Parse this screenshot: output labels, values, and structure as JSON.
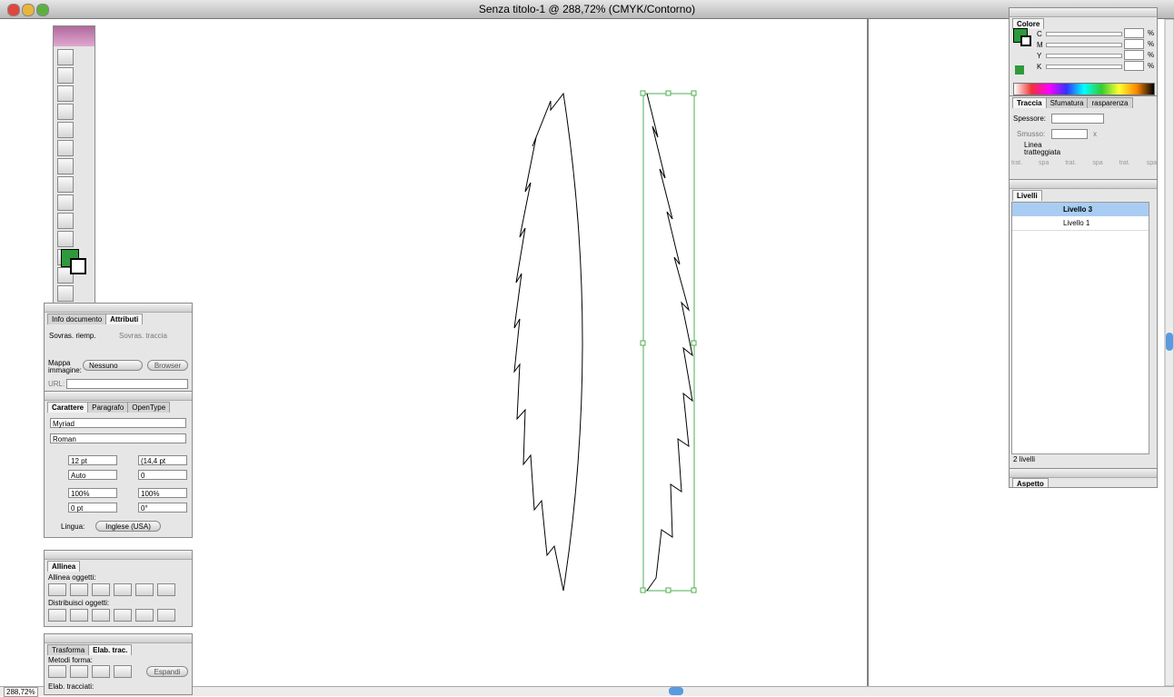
{
  "window": {
    "title": "Senza titolo-1 @ 288,72% (CMYK/Contorno)",
    "zoom": "288,72%"
  },
  "colore": {
    "tab": "Colore",
    "channels": [
      "C",
      "M",
      "Y",
      "K"
    ],
    "unit": "%"
  },
  "traccia": {
    "tabs": [
      "Traccia",
      "Sfumatura",
      "rasparenza"
    ],
    "spessore": "Spessore:",
    "smusso": "Smusso:",
    "x": "x",
    "dash": "Linea tratteggiata",
    "dash_labels": [
      "trat.",
      "spa",
      "trat.",
      "spa",
      "trat.",
      "spa"
    ]
  },
  "livelli": {
    "tab": "Livelli",
    "layers": [
      "Livello 3",
      "Livello 1"
    ],
    "count": "2 livelli"
  },
  "aspetto": {
    "tab": "Aspetto"
  },
  "attributi": {
    "tabs": [
      "Info documento",
      "Attributi"
    ],
    "overprint_fill": "Sovras. riemp.",
    "overprint_stroke": "Sovras. traccia",
    "image_map": "Mappa immagine:",
    "image_map_value": "Nessuno",
    "browser": "Browser",
    "url": "URL:"
  },
  "carattere": {
    "tabs": [
      "Carattere",
      "Paragrafo",
      "OpenType"
    ],
    "font": "Myriad",
    "style": "Roman",
    "size": "12 pt",
    "leading": "(14,4 pt",
    "kerning": "Auto",
    "tracking": "0",
    "vscale": "100%",
    "hscale": "100%",
    "baseline": "0 pt",
    "rotation": "0°",
    "language_label": "Lingua:",
    "language": "Inglese (USA)"
  },
  "allinea": {
    "tab": "Allinea",
    "align_label": "Allinea oggetti:",
    "distribute_label": "Distribuisci oggetti:"
  },
  "elab": {
    "tabs": [
      "Trasforma",
      "Elab. trac."
    ],
    "shape_modes": "Metodi forma:",
    "expand": "Espandi",
    "pathfinders": "Elab. tracciati:"
  }
}
